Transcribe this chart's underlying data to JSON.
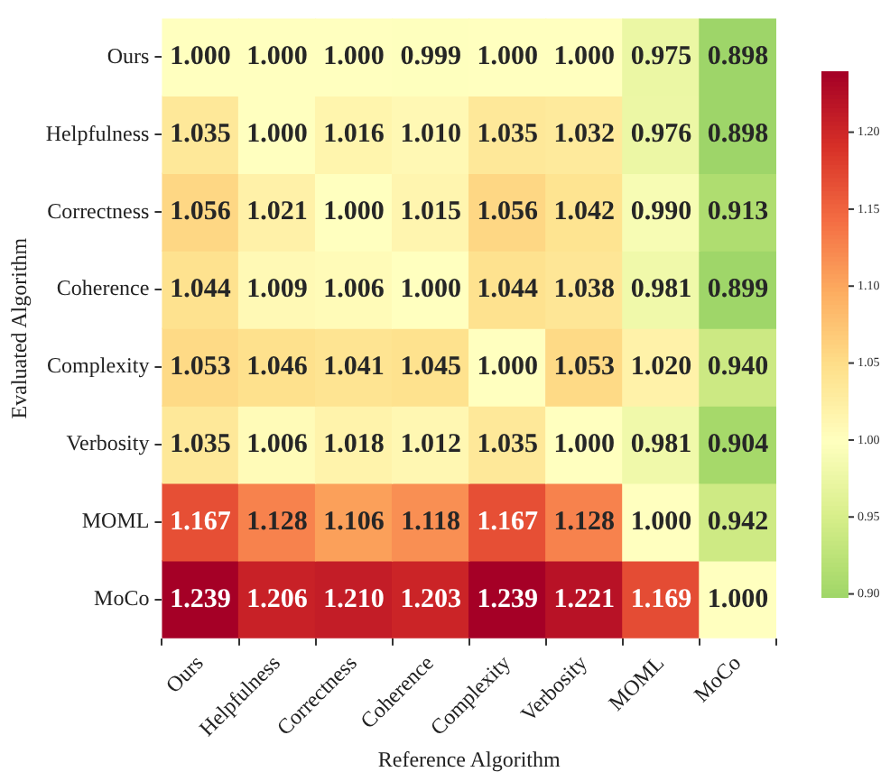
{
  "chart_data": {
    "type": "heatmap",
    "xlabel": "Reference Algorithm",
    "ylabel": "Evaluated Algorithm",
    "categories": [
      "Ours",
      "Helpfulness",
      "Correctness",
      "Coherence",
      "Complexity",
      "Verbosity",
      "MOML",
      "MoCo"
    ],
    "y_categories": [
      "Ours",
      "Helpfulness",
      "Correctness",
      "Coherence",
      "Complexity",
      "Verbosity",
      "MOML",
      "MoCo"
    ],
    "cells": [
      [
        1.0,
        1.0,
        1.0,
        0.999,
        1.0,
        1.0,
        0.975,
        0.898
      ],
      [
        1.035,
        1.0,
        1.016,
        1.01,
        1.035,
        1.032,
        0.976,
        0.898
      ],
      [
        1.056,
        1.021,
        1.0,
        1.015,
        1.056,
        1.042,
        0.99,
        0.913
      ],
      [
        1.044,
        1.009,
        1.006,
        1.0,
        1.044,
        1.038,
        0.981,
        0.899
      ],
      [
        1.053,
        1.046,
        1.041,
        1.045,
        1.0,
        1.053,
        1.02,
        0.94
      ],
      [
        1.035,
        1.006,
        1.018,
        1.012,
        1.035,
        1.0,
        0.981,
        0.904
      ],
      [
        1.167,
        1.128,
        1.106,
        1.118,
        1.167,
        1.128,
        1.0,
        0.942
      ],
      [
        1.239,
        1.206,
        1.21,
        1.203,
        1.239,
        1.221,
        1.169,
        1.0
      ]
    ],
    "cell_labels": [
      [
        "1.000",
        "1.000",
        "1.000",
        "0.999",
        "1.000",
        "1.000",
        "0.975",
        "0.898"
      ],
      [
        "1.035",
        "1.000",
        "1.016",
        "1.010",
        "1.035",
        "1.032",
        "0.976",
        "0.898"
      ],
      [
        "1.056",
        "1.021",
        "1.000",
        "1.015",
        "1.056",
        "1.042",
        "0.990",
        "0.913"
      ],
      [
        "1.044",
        "1.009",
        "1.006",
        "1.000",
        "1.044",
        "1.038",
        "0.981",
        "0.899"
      ],
      [
        "1.053",
        "1.046",
        "1.041",
        "1.045",
        "1.000",
        "1.053",
        "1.020",
        "0.940"
      ],
      [
        "1.035",
        "1.006",
        "1.018",
        "1.012",
        "1.035",
        "1.000",
        "0.981",
        "0.904"
      ],
      [
        "1.167",
        "1.128",
        "1.106",
        "1.118",
        "1.167",
        "1.128",
        "1.000",
        "0.942"
      ],
      [
        "1.239",
        "1.206",
        "1.210",
        "1.203",
        "1.239",
        "1.221",
        "1.169",
        "1.000"
      ]
    ],
    "clim": [
      0.898,
      1.239
    ],
    "cticks": [
      {
        "value": 0.9,
        "label": "0.90"
      },
      {
        "value": 0.95,
        "label": "0.95"
      },
      {
        "value": 1.0,
        "label": "1.00"
      },
      {
        "value": 1.05,
        "label": "1.05"
      },
      {
        "value": 1.1,
        "label": "1.10"
      },
      {
        "value": 1.15,
        "label": "1.15"
      },
      {
        "value": 1.2,
        "label": "1.20"
      }
    ]
  }
}
